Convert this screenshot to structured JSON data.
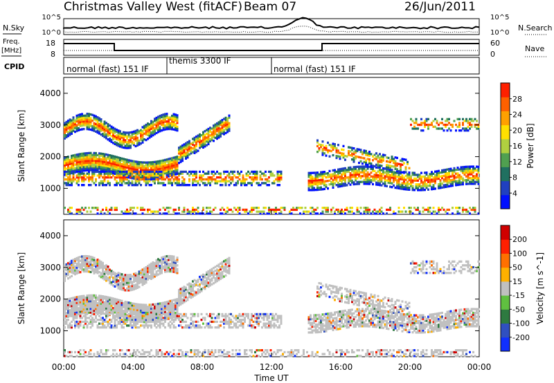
{
  "header": {
    "station": "Christmas Valley West (fitACF)",
    "beam": "Beam 07",
    "date": "26/Jun/2011"
  },
  "left_labels": {
    "nsky": "N.Sky",
    "freq": "Freq.",
    "mhz": "[MHz]",
    "cpid": "CPID"
  },
  "right_labels": {
    "nsearch": "N.Search",
    "nave": "Nave"
  },
  "noise_axis": {
    "left_ticks": [
      "10^5",
      "10^0"
    ],
    "right_ticks": [
      "10^5",
      "10^0"
    ]
  },
  "freq_axis": {
    "left_ticks": [
      "18",
      "8"
    ],
    "right_ticks": [
      "60",
      "0"
    ]
  },
  "modes": [
    {
      "label": "normal (fast) 151 IF",
      "start_h": 0.0,
      "end_h": 6.0
    },
    {
      "label": "themis 3300 IF",
      "start_h": 6.0,
      "end_h": 12.0
    },
    {
      "label": "normal (fast) 151 IF",
      "start_h": 12.0,
      "end_h": 24.0
    }
  ],
  "chart_data": [
    {
      "type": "heatmap",
      "ylabel": "Slant Range [km]",
      "ylim": [
        180,
        4500
      ],
      "yticks": [
        1000,
        2000,
        3000,
        4000
      ],
      "xlim": [
        0,
        24
      ],
      "colorbar": {
        "label": "Power [dB]",
        "range": [
          0,
          32
        ],
        "ticks": [
          28,
          24,
          20,
          16,
          12,
          8,
          4
        ],
        "colors": [
          "#0010ff",
          "#2040c0",
          "#207060",
          "#50a050",
          "#b0d040",
          "#ffe000",
          "#ffa000",
          "#ff6000",
          "#ff2000"
        ]
      }
    },
    {
      "type": "heatmap",
      "ylabel": "Slant Range [km]",
      "ylim": [
        180,
        4500
      ],
      "yticks": [
        1000,
        2000,
        3000,
        4000
      ],
      "xlim": [
        0,
        24
      ],
      "colorbar": {
        "label": "Velocity [m s^-1]",
        "ticks": [
          "200",
          "100",
          "50",
          "15",
          "-15",
          "-50",
          "-100",
          "-200"
        ],
        "colors": [
          "#1030ff",
          "#3050c0",
          "#2e7a40",
          "#60c040",
          "#c0c0c0",
          "#ffb000",
          "#ff7000",
          "#ff2000",
          "#d00000"
        ]
      }
    }
  ],
  "time_axis": {
    "ticks": [
      "00:00",
      "04:00",
      "08:00",
      "12:00",
      "16:00",
      "20:00",
      "00:00"
    ],
    "label": "Time UT"
  }
}
